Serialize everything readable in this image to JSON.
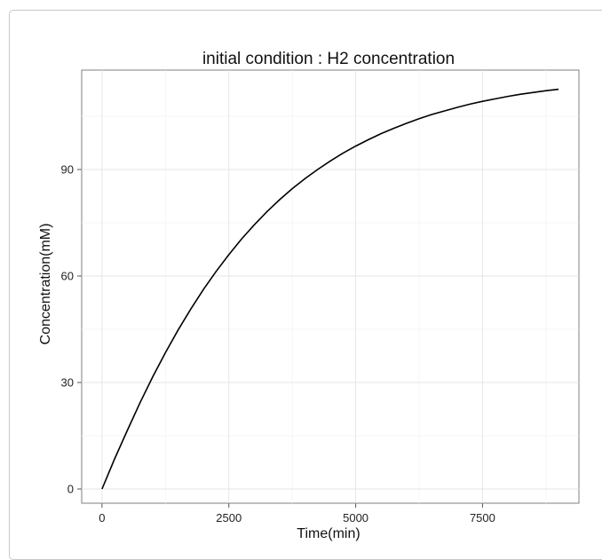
{
  "chart_data": {
    "type": "line",
    "title": "initial condition : H2 concentration",
    "xlabel": "Time(min)",
    "ylabel": "Concentration(mM)",
    "xlim": [
      -400,
      9400
    ],
    "ylim": [
      -4,
      118
    ],
    "x_ticks": [
      0,
      2500,
      5000,
      7500
    ],
    "x_tick_labels": [
      "0",
      "2500",
      "5000",
      "7500"
    ],
    "y_ticks": [
      0,
      30,
      60,
      90
    ],
    "y_tick_labels": [
      "0",
      "30",
      "60",
      "90"
    ],
    "grid": true,
    "line_color": "#000000",
    "series": [
      {
        "x": [
          0,
          250,
          500,
          750,
          1000,
          1250,
          1500,
          1750,
          2000,
          2250,
          2500,
          2750,
          3000,
          3250,
          3500,
          3750,
          4000,
          4250,
          4500,
          4750,
          5000,
          5250,
          5500,
          5750,
          6000,
          6250,
          6500,
          6750,
          7000,
          7250,
          7500,
          7750,
          8000,
          8250,
          8500,
          8750,
          9000
        ],
        "y": [
          0,
          8.5,
          16.5,
          24.3,
          31.6,
          38.4,
          44.8,
          50.7,
          56.2,
          61.3,
          66.0,
          70.4,
          74.4,
          78.1,
          81.5,
          84.6,
          87.4,
          90.0,
          92.4,
          94.6,
          96.6,
          98.4,
          100.1,
          101.6,
          103.0,
          104.3,
          105.5,
          106.5,
          107.5,
          108.4,
          109.2,
          109.9,
          110.6,
          111.2,
          111.7,
          112.2,
          112.6
        ]
      }
    ]
  }
}
